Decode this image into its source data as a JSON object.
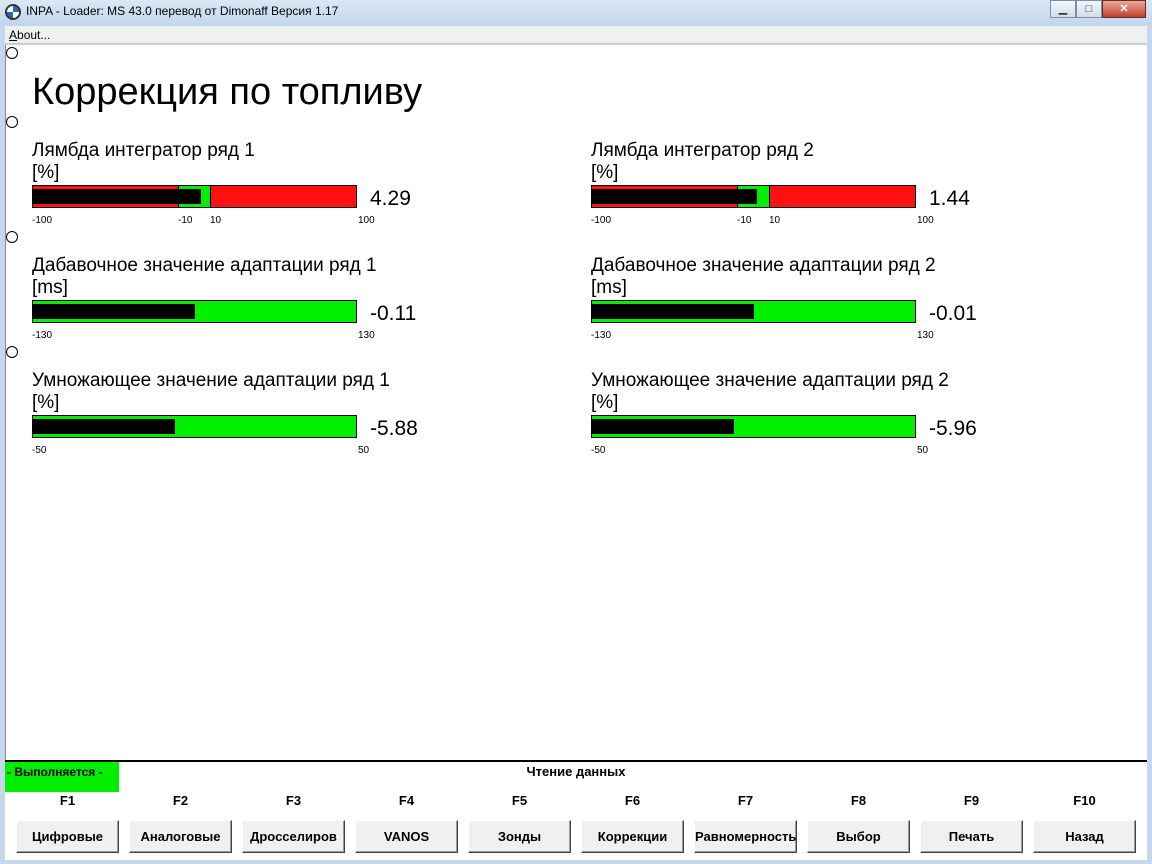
{
  "window": {
    "title": "INPA - Loader:  MS 43.0 перевод от Dimonaff Версия 1.17",
    "minimize_glyph": "▁",
    "maximize_glyph": "□",
    "close_glyph": "✕"
  },
  "menu": {
    "about_prefix": "A",
    "about_rest": "bout..."
  },
  "page": {
    "title": "Коррекция по топливу",
    "gauges": [
      {
        "label": "Лямбда интегратор ряд 1",
        "unit": "[%]",
        "value": "4.29",
        "min": "-100",
        "max": "100",
        "zone_min": "-10",
        "zone_max": "10",
        "fill_fraction": 0.52,
        "style": "red"
      },
      {
        "label": "Лямбда интегратор ряд 2",
        "unit": "[%]",
        "value": "1.44",
        "min": "-100",
        "max": "100",
        "zone_min": "-10",
        "zone_max": "10",
        "fill_fraction": 0.51,
        "style": "red"
      },
      {
        "label": "Дабавочное значение адаптации ряд 1",
        "unit": "[ms]",
        "value": "-0.11",
        "min": "-130",
        "max": "130",
        "fill_fraction": 0.5,
        "style": "green"
      },
      {
        "label": "Дабавочное значение адаптации ряд 2",
        "unit": "[ms]",
        "value": "-0.01",
        "min": "-130",
        "max": "130",
        "fill_fraction": 0.5,
        "style": "green"
      },
      {
        "label": "Умножающее значение адаптации ряд 1",
        "unit": "[%]",
        "value": "-5.88",
        "min": "-50",
        "max": "50",
        "fill_fraction": 0.44,
        "style": "green"
      },
      {
        "label": "Умножающее значение адаптации ряд 2",
        "unit": "[%]",
        "value": "-5.96",
        "min": "-50",
        "max": "50",
        "fill_fraction": 0.44,
        "style": "green"
      }
    ]
  },
  "status": {
    "running": "- Выполняется -",
    "text": "Чтение данных"
  },
  "fkeys": [
    {
      "key": "F1",
      "label": "Цифровые"
    },
    {
      "key": "F2",
      "label": "Аналоговые"
    },
    {
      "key": "F3",
      "label": "Дросселиров"
    },
    {
      "key": "F4",
      "label": "VANOS"
    },
    {
      "key": "F5",
      "label": "Зонды"
    },
    {
      "key": "F6",
      "label": "Коррекции"
    },
    {
      "key": "F7",
      "label": "Равномерность"
    },
    {
      "key": "F8",
      "label": "Выбор"
    },
    {
      "key": "F9",
      "label": "Печать"
    },
    {
      "key": "F10",
      "label": "Назад"
    }
  ],
  "colors": {
    "bar_green": "#00ee00",
    "bar_red": "#ff1111",
    "fill": "#000000"
  }
}
